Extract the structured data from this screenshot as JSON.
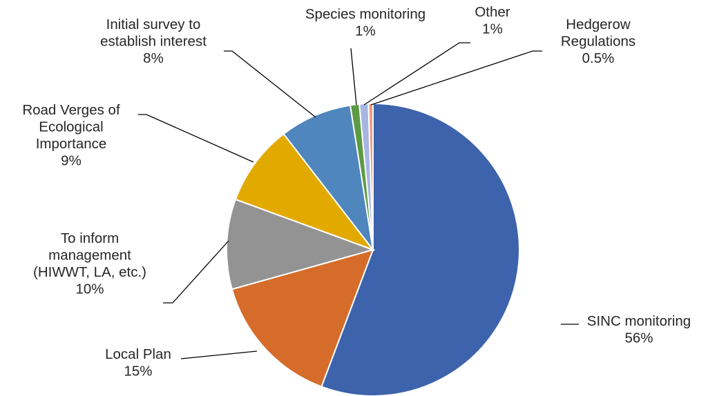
{
  "chart_data": {
    "type": "pie",
    "start_angle_deg": 90,
    "direction": "clockwise",
    "slices": [
      {
        "name": "SINC monitoring",
        "lines": [
          "SINC monitoring"
        ],
        "value": 56,
        "pct_label": "56%",
        "color": "#3c63ac"
      },
      {
        "name": "Local Plan",
        "lines": [
          "Local Plan"
        ],
        "value": 15,
        "pct_label": "15%",
        "color": "#d56c2a"
      },
      {
        "name": "To inform management (HIWWT, LA, etc.)",
        "lines": [
          "To inform",
          "management",
          "(HIWWT, LA, etc.)"
        ],
        "value": 10,
        "pct_label": "10%",
        "color": "#939393"
      },
      {
        "name": "Road Verges of Ecological Importance",
        "lines": [
          "Road Verges of",
          "Ecological",
          "Importance"
        ],
        "value": 9,
        "pct_label": "9%",
        "color": "#e2aa00"
      },
      {
        "name": "Initial survey to establish interest",
        "lines": [
          "Initial survey to",
          "establish interest"
        ],
        "value": 8,
        "pct_label": "8%",
        "color": "#4e86bd"
      },
      {
        "name": "Species monitoring",
        "lines": [
          "Species monitoring"
        ],
        "value": 1,
        "pct_label": "1%",
        "color": "#5d9a44"
      },
      {
        "name": "Other",
        "lines": [
          "Other"
        ],
        "value": 1,
        "pct_label": "1%",
        "color": "#a7b6e0"
      },
      {
        "name": "Hedgerow Regulations",
        "lines": [
          "Hedgerow",
          "Regulations"
        ],
        "value": 0.5,
        "pct_label": "0.5%",
        "color": "#f39a82"
      }
    ]
  }
}
